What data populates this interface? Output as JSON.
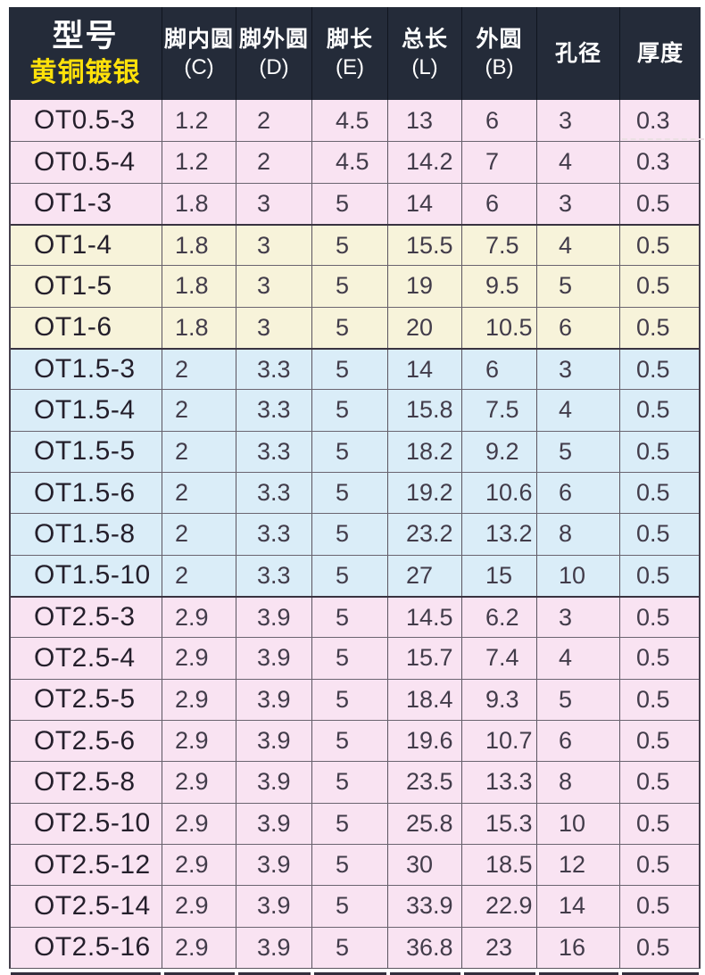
{
  "colors": {
    "header_bg": "#242b39",
    "accent_yellow": "#ffe10a",
    "row_pink": "#f9e3f2",
    "row_cream": "#f7f3da",
    "row_blue": "#daedf8",
    "border_dark": "#5b5560",
    "text_model": "#241f2b",
    "text_value": "#423c4a"
  },
  "table": {
    "header": {
      "model_title": "型号",
      "model_subtitle": "黄铜镀银",
      "columns": [
        {
          "label": "脚内圆",
          "sub": "(C)"
        },
        {
          "label": "脚外圆",
          "sub": "(D)"
        },
        {
          "label": "脚长",
          "sub": "(E)"
        },
        {
          "label": "总长",
          "sub": "(L)"
        },
        {
          "label": "外圆",
          "sub": "(B)"
        },
        {
          "label": "孔径",
          "sub": ""
        },
        {
          "label": "厚度",
          "sub": ""
        }
      ]
    },
    "rows": [
      {
        "model": "OT0.5-3",
        "values": [
          "1.2",
          "2",
          "4.5",
          "13",
          "6",
          "3",
          "0.3"
        ],
        "group": "pink"
      },
      {
        "model": "OT0.5-4",
        "values": [
          "1.2",
          "2",
          "4.5",
          "14.2",
          "7",
          "4",
          "0.3"
        ],
        "group": "pink"
      },
      {
        "model": "OT1-3",
        "values": [
          "1.8",
          "3",
          "5",
          "14",
          "6",
          "3",
          "0.5"
        ],
        "group": "pink"
      },
      {
        "model": "OT1-4",
        "values": [
          "1.8",
          "3",
          "5",
          "15.5",
          "7.5",
          "4",
          "0.5"
        ],
        "group": "cream"
      },
      {
        "model": "OT1-5",
        "values": [
          "1.8",
          "3",
          "5",
          "19",
          "9.5",
          "5",
          "0.5"
        ],
        "group": "cream"
      },
      {
        "model": "OT1-6",
        "values": [
          "1.8",
          "3",
          "5",
          "20",
          "10.5",
          "6",
          "0.5"
        ],
        "group": "cream"
      },
      {
        "model": "OT1.5-3",
        "values": [
          "2",
          "3.3",
          "5",
          "14",
          "6",
          "3",
          "0.5"
        ],
        "group": "blue"
      },
      {
        "model": "OT1.5-4",
        "values": [
          "2",
          "3.3",
          "5",
          "15.8",
          "7.5",
          "4",
          "0.5"
        ],
        "group": "blue"
      },
      {
        "model": "OT1.5-5",
        "values": [
          "2",
          "3.3",
          "5",
          "18.2",
          "9.2",
          "5",
          "0.5"
        ],
        "group": "blue"
      },
      {
        "model": "OT1.5-6",
        "values": [
          "2",
          "3.3",
          "5",
          "19.2",
          "10.6",
          "6",
          "0.5"
        ],
        "group": "blue"
      },
      {
        "model": "OT1.5-8",
        "values": [
          "2",
          "3.3",
          "5",
          "23.2",
          "13.2",
          "8",
          "0.5"
        ],
        "group": "blue"
      },
      {
        "model": "OT1.5-10",
        "values": [
          "2",
          "3.3",
          "5",
          "27",
          "15",
          "10",
          "0.5"
        ],
        "group": "blue"
      },
      {
        "model": "OT2.5-3",
        "values": [
          "2.9",
          "3.9",
          "5",
          "14.5",
          "6.2",
          "3",
          "0.5"
        ],
        "group": "pink"
      },
      {
        "model": "OT2.5-4",
        "values": [
          "2.9",
          "3.9",
          "5",
          "15.7",
          "7.4",
          "4",
          "0.5"
        ],
        "group": "pink"
      },
      {
        "model": "OT2.5-5",
        "values": [
          "2.9",
          "3.9",
          "5",
          "18.4",
          "9.3",
          "5",
          "0.5"
        ],
        "group": "pink"
      },
      {
        "model": "OT2.5-6",
        "values": [
          "2.9",
          "3.9",
          "5",
          "19.6",
          "10.7",
          "6",
          "0.5"
        ],
        "group": "pink"
      },
      {
        "model": "OT2.5-8",
        "values": [
          "2.9",
          "3.9",
          "5",
          "23.5",
          "13.3",
          "8",
          "0.5"
        ],
        "group": "pink"
      },
      {
        "model": "OT2.5-10",
        "values": [
          "2.9",
          "3.9",
          "5",
          "25.8",
          "15.3",
          "10",
          "0.5"
        ],
        "group": "pink"
      },
      {
        "model": "OT2.5-12",
        "values": [
          "2.9",
          "3.9",
          "5",
          "30",
          "18.5",
          "12",
          "0.5"
        ],
        "group": "pink"
      },
      {
        "model": "OT2.5-14",
        "values": [
          "2.9",
          "3.9",
          "5",
          "33.9",
          "22.9",
          "14",
          "0.5"
        ],
        "group": "pink"
      },
      {
        "model": "OT2.5-16",
        "values": [
          "2.9",
          "3.9",
          "5",
          "36.8",
          "23",
          "16",
          "0.5"
        ],
        "group": "pink"
      }
    ]
  }
}
